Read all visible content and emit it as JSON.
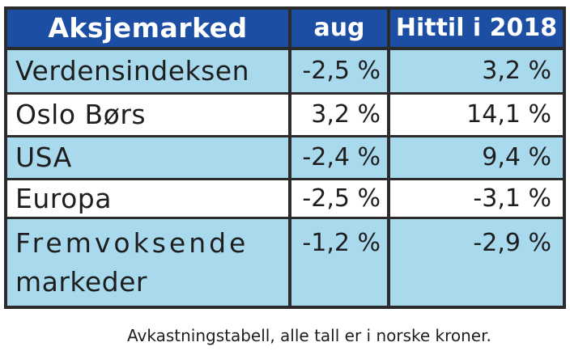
{
  "table": {
    "headers": [
      "Aksjemarked",
      "aug",
      "Hittil i 2018"
    ],
    "rows": [
      {
        "market": "Verdensindeksen",
        "aug": "-2,5 %",
        "ytd": "3,2 %"
      },
      {
        "market": "Oslo Børs",
        "aug": "3,2 %",
        "ytd": "14,1 %"
      },
      {
        "market": "USA",
        "aug": "-2,4 %",
        "ytd": "9,4 %"
      },
      {
        "market": "Europa",
        "aug": "-2,5 %",
        "ytd": "-3,1 %"
      },
      {
        "market_line1": "Fremvoksende",
        "market_line2": "markeder",
        "aug": "-1,2 %",
        "ytd": "-2,9 %"
      }
    ]
  },
  "caption": "Avkastningstabell, alle tall er i norske kroner.",
  "colors": {
    "header_bg": "#1c4fa3",
    "row_blue": "#a8d9ed",
    "row_white": "#ffffff",
    "grid": "#2b2b2b"
  }
}
